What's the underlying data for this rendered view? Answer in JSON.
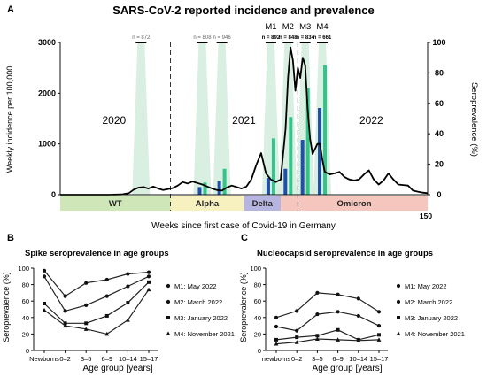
{
  "chart_data": [
    {
      "panel": "A",
      "type": "line",
      "title": "SARS-CoV-2 reported incidence and prevalence",
      "xlabel": "Weeks since first case of Covid-19 in Germany",
      "ylabel": "Weekly incidence per 100,000",
      "ylabel_right": "Seroprevalence (%)",
      "x_end_label": "150",
      "xlim": [
        0,
        150
      ],
      "ylim": [
        0,
        3000
      ],
      "ylim_right": [
        0,
        100
      ],
      "yticks": [
        0,
        1000,
        2000,
        3000
      ],
      "yticks_right": [
        0,
        20,
        40,
        60,
        80,
        100
      ],
      "year_labels": [
        {
          "text": "2020",
          "x": 22
        },
        {
          "text": "2021",
          "x": 75
        },
        {
          "text": "2022",
          "x": 127
        }
      ],
      "year_dividers": [
        45,
        97
      ],
      "variant_bands": [
        {
          "label": "WT",
          "from": 0,
          "to": 45,
          "color": "#cfe6b8"
        },
        {
          "label": "Alpha",
          "from": 45,
          "to": 75,
          "color": "#f7f1c0"
        },
        {
          "label": "Delta",
          "from": 75,
          "to": 90,
          "color": "#b6b5e0"
        },
        {
          "label": "Omicron",
          "from": 90,
          "to": 150,
          "color": "#f4c6bd"
        }
      ],
      "incidence": {
        "x": [
          0,
          10,
          20,
          25,
          28,
          30,
          32,
          34,
          36,
          38,
          40,
          42,
          44,
          46,
          48,
          50,
          52,
          54,
          56,
          58,
          60,
          62,
          64,
          66,
          68,
          70,
          72,
          74,
          76,
          78,
          80,
          82,
          84,
          86,
          88,
          90,
          92,
          93,
          94,
          95,
          96,
          97,
          98,
          99,
          100,
          101,
          102,
          103,
          104,
          105,
          106,
          107,
          108,
          110,
          112,
          114,
          116,
          118,
          120,
          122,
          124,
          126,
          128,
          130,
          132,
          134,
          136,
          138,
          140,
          142,
          144,
          146,
          148,
          150
        ],
        "y": [
          0,
          0,
          0,
          5,
          30,
          100,
          140,
          150,
          120,
          160,
          120,
          90,
          110,
          130,
          180,
          250,
          220,
          260,
          230,
          200,
          160,
          120,
          90,
          80,
          140,
          180,
          150,
          120,
          160,
          300,
          580,
          820,
          420,
          300,
          250,
          300,
          1300,
          2300,
          2900,
          2650,
          2050,
          2500,
          2300,
          2700,
          2550,
          1700,
          1100,
          800,
          900,
          1000,
          1000,
          700,
          450,
          400,
          420,
          450,
          350,
          300,
          280,
          300,
          400,
          480,
          300,
          200,
          280,
          420,
          300,
          200,
          190,
          180,
          80,
          60,
          40,
          30
        ]
      },
      "serosurveys": [
        {
          "name": "",
          "n_label": "n = 872",
          "x": 33,
          "seroprevalence": []
        },
        {
          "name": "",
          "n_label": "n = 808",
          "x": 58,
          "seroprevalence": [
            5,
            8
          ]
        },
        {
          "name": "",
          "n_label": "n = 946",
          "x": 66,
          "seroprevalence": [
            9,
            17
          ]
        },
        {
          "name": "M1",
          "n_label": "n = 892",
          "x": 86,
          "seroprevalence": [
            11,
            37
          ]
        },
        {
          "name": "M2",
          "n_label": "n = 848",
          "x": 93,
          "seroprevalence": [
            17,
            51
          ]
        },
        {
          "name": "M3",
          "n_label": "n = 834",
          "x": 100,
          "seroprevalence": [
            36,
            70
          ]
        },
        {
          "name": "M4",
          "n_label": "n = 661",
          "x": 107,
          "seroprevalence": [
            57,
            85
          ]
        }
      ]
    },
    {
      "panel": "B",
      "type": "line",
      "title": "Spike seroprevalence in age groups",
      "xlabel": "Age group [years]",
      "ylabel": "Seroprevalence (%)",
      "categories": [
        "Newborns",
        "0–2",
        "3–5",
        "6–9",
        "10–14",
        "15–17"
      ],
      "ylim": [
        0,
        100
      ],
      "yticks": [
        0,
        20,
        40,
        60,
        80,
        100
      ],
      "series": [
        {
          "name": "M1: May 2022",
          "values": [
            97,
            66,
            82,
            86,
            93,
            95
          ]
        },
        {
          "name": "M2: March 2022",
          "values": [
            90,
            48,
            55,
            66,
            78,
            90
          ]
        },
        {
          "name": "M3: January 2022",
          "values": [
            57,
            33,
            33,
            42,
            58,
            83
          ]
        },
        {
          "name": "M4: November 2021",
          "values": [
            49,
            30,
            26,
            20,
            37,
            74
          ]
        }
      ]
    },
    {
      "panel": "C",
      "type": "line",
      "title": "Nucleocapsid seroprevalence in age groups",
      "xlabel": "Age group [years]",
      "ylabel": "Seroprevalence (%)",
      "categories": [
        "newborns",
        "0–2",
        "3–5",
        "6–9",
        "10–14",
        "15–17"
      ],
      "ylim": [
        0,
        100
      ],
      "yticks": [
        0,
        20,
        40,
        60,
        80,
        100
      ],
      "series": [
        {
          "name": "M1: May 2022",
          "values": [
            40,
            48,
            70,
            68,
            63,
            47
          ]
        },
        {
          "name": "M2: March 2022",
          "values": [
            29,
            24,
            44,
            47,
            42,
            30
          ]
        },
        {
          "name": "M3: January 2022",
          "values": [
            13,
            16,
            18,
            25,
            13,
            19
          ]
        },
        {
          "name": "M4: November 2021",
          "values": [
            8,
            10,
            14,
            13,
            12,
            13
          ]
        }
      ]
    }
  ],
  "colors": {
    "axis": "#111111",
    "spike_bar": "#34c38a",
    "nucleo_bar": "#1f4fa8",
    "cone": "#bfe5cd",
    "divider": "#333333"
  }
}
